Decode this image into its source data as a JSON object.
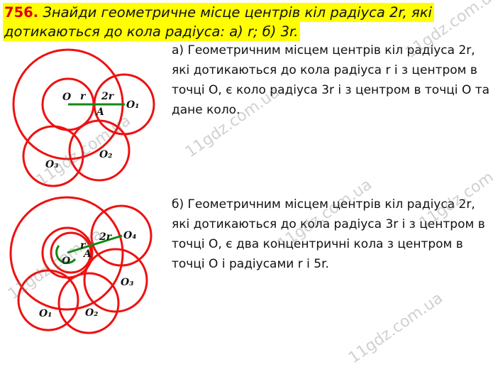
{
  "title": {
    "number": "756.",
    "line1": " Знайди геометричне місце центрів кіл радіуса 2r, які",
    "line2": "дотикаються до кола радіуса: а) r; б) 3r."
  },
  "answer_a": "а) Геометричним місцем центрів кіл радіуса 2r, які дотикаються до кола радіуса r і з центром в точці О, є коло радіуса 3r і з центром в точці О та дане коло.",
  "answer_b": "б) Геометричним місцем центрів кіл радіуса 2r, які дотикаються до кола радіуса 3r і з центром в точці О, є два концентричні кола з центром в точці О і радіусами r і 5r.",
  "figure_a": {
    "labels": {
      "O": "O",
      "r": "r",
      "two_r": "2r",
      "A": "A",
      "O1": "O₁",
      "O2": "O₂",
      "O3": "O₃"
    }
  },
  "figure_b": {
    "labels": {
      "O": "O",
      "r": "r",
      "two_r": "2r",
      "A": "A",
      "O1": "O₁",
      "O2": "O₂",
      "O3": "O₃",
      "O4": "O₄"
    }
  },
  "watermark": "11gdz.com.ua",
  "colors": {
    "highlight": "#ffff00",
    "number": "#e00000",
    "circle": "#ee1111",
    "segment": "#118811"
  }
}
